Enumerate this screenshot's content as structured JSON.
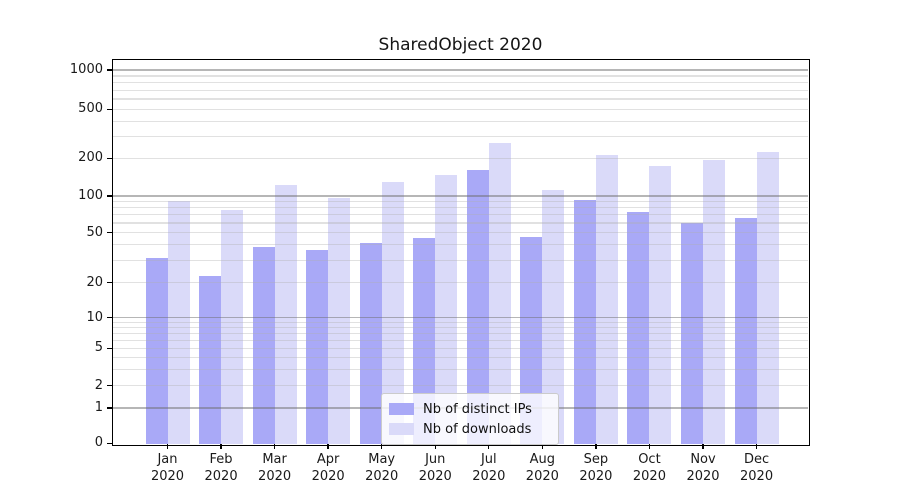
{
  "title": "SharedObject 2020",
  "legend": {
    "entries": [
      {
        "label": "Nb of distinct IPs",
        "color": "#a9a9f7"
      },
      {
        "label": "Nb of downloads",
        "color": "#dadaf9"
      }
    ]
  },
  "y_axis": {
    "tick_labels": [
      "1000",
      "500",
      "200",
      "100",
      "50",
      "20",
      "10",
      "5",
      "2",
      "1",
      "0"
    ],
    "tick_values": [
      1000,
      500,
      200,
      100,
      50,
      20,
      10,
      5,
      2,
      1,
      0
    ]
  },
  "x_axis": {
    "tick_labels_line2": "2020"
  },
  "style": {
    "bar_color_ips": "#a9a9f7",
    "bar_color_downloads": "#dadaf9",
    "grid_major_color": "rgba(110,110,110,0.50)",
    "grid_minor_color": "rgba(175,175,175,0.38)",
    "spine_color": "#000000",
    "background": "#ffffff"
  },
  "chart_data": {
    "type": "bar",
    "title": "SharedObject 2020",
    "categories": [
      "Jan 2020",
      "Feb 2020",
      "Mar 2020",
      "Apr 2020",
      "May 2020",
      "Jun 2020",
      "Jul 2020",
      "Aug 2020",
      "Sep 2020",
      "Oct 2020",
      "Nov 2020",
      "Dec 2020"
    ],
    "series": [
      {
        "name": "Nb of distinct IPs",
        "color": "#a9a9f7",
        "values": [
          32,
          23,
          39,
          37,
          42,
          46,
          164,
          47,
          93,
          74,
          61,
          67
        ]
      },
      {
        "name": "Nb of downloads",
        "color": "#dadaf9",
        "values": [
          92,
          77,
          124,
          97,
          130,
          149,
          270,
          112,
          214,
          176,
          195,
          228
        ]
      }
    ],
    "xlabel": "",
    "ylabel": "",
    "yscale": "log-like (asinh), ticks 0,1,2,5,10,20,50,100,200,500,1000",
    "yticks": [
      0,
      1,
      2,
      5,
      10,
      20,
      50,
      100,
      200,
      500,
      1000
    ],
    "ylim": [
      0,
      1200
    ],
    "grid": "horizontal major (powers of 10, darker) + minor (2-9 mantissas, light), drawn over bars",
    "legend_position": "lower center inside plot"
  }
}
